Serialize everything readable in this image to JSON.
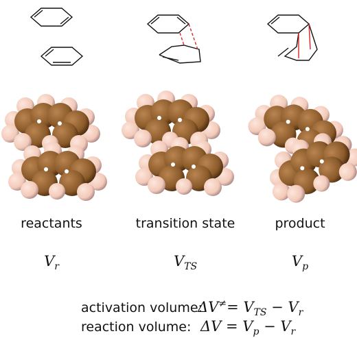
{
  "columns": [
    {
      "label": "reactants",
      "symbol": "V",
      "subscript": "r"
    },
    {
      "label": "transition state",
      "symbol": "V",
      "subscript": "TS"
    },
    {
      "label": "product",
      "symbol": "V",
      "subscript": "p"
    }
  ],
  "equations": [
    {
      "label": "activation volume:",
      "parts": [
        {
          "text": "ΔV"
        },
        {
          "text": "≠",
          "sup": true
        },
        {
          "text": "= V"
        },
        {
          "text": "TS",
          "sub": true
        },
        {
          "text": " − V"
        },
        {
          "text": "r",
          "sub": true
        }
      ]
    },
    {
      "label": "reaction volume:",
      "parts": [
        {
          "text": "ΔV = V"
        },
        {
          "text": "p",
          "sub": true
        },
        {
          "text": " − V"
        },
        {
          "text": "r",
          "sub": true
        }
      ]
    }
  ]
}
